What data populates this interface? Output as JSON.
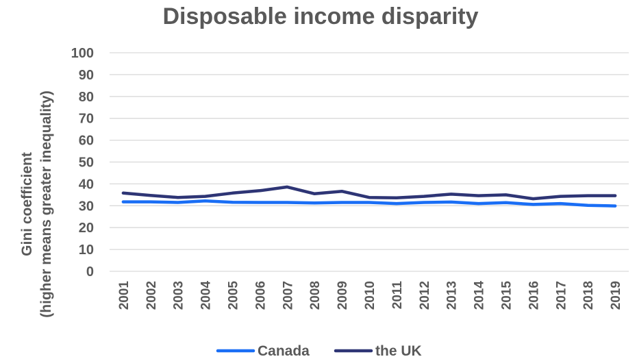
{
  "chart_data": {
    "type": "line",
    "title": "Disposable income disparity",
    "ylabel_lines": [
      "Gini coefficient",
      "(higher means greater inequality)"
    ],
    "xlabel": "",
    "ylim": [
      0,
      100
    ],
    "yticks": [
      0,
      10,
      20,
      30,
      40,
      50,
      60,
      70,
      80,
      90,
      100
    ],
    "categories": [
      "2001",
      "2002",
      "2003",
      "2004",
      "2005",
      "2006",
      "2007",
      "2008",
      "2009",
      "2010",
      "2011",
      "2012",
      "2013",
      "2014",
      "2015",
      "2016",
      "2017",
      "2018",
      "2019"
    ],
    "series": [
      {
        "name": "Canada",
        "color": "#1a6ef5",
        "values": [
          31.8,
          31.8,
          31.5,
          32.2,
          31.6,
          31.5,
          31.5,
          31.3,
          31.5,
          31.5,
          31.0,
          31.5,
          31.7,
          31.0,
          31.4,
          30.6,
          31.0,
          30.2,
          29.9
        ]
      },
      {
        "name": "the UK",
        "color": "#2e3575",
        "values": [
          35.8,
          34.7,
          33.8,
          34.3,
          35.8,
          36.9,
          38.6,
          35.5,
          36.6,
          33.8,
          33.6,
          34.3,
          35.3,
          34.6,
          35.0,
          33.2,
          34.3,
          34.6,
          34.6
        ]
      }
    ],
    "legend_position": "bottom",
    "grid": true
  }
}
